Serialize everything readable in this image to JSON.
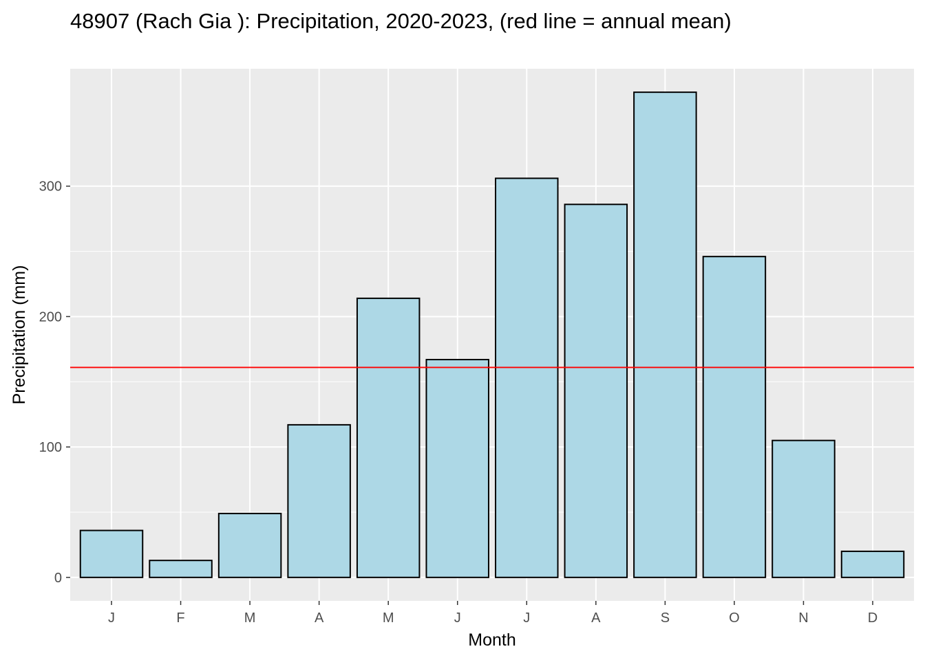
{
  "chart_data": {
    "type": "bar",
    "title": "48907 (Rach Gia ): Precipitation, 2020-2023, (red line = annual mean)",
    "xlabel": "Month",
    "ylabel": "Precipitation (mm)",
    "categories": [
      "J",
      "F",
      "M",
      "A",
      "M",
      "J",
      "J",
      "A",
      "S",
      "O",
      "N",
      "D"
    ],
    "values": [
      36,
      13,
      49,
      117,
      214,
      167,
      306,
      286,
      372,
      246,
      105,
      20
    ],
    "annual_mean": 161,
    "yticks": [
      0,
      100,
      200,
      300
    ],
    "ylim": [
      -18,
      390
    ],
    "grid": true,
    "colors": {
      "panel_background": "#ebebeb",
      "grid": "#ffffff",
      "bar_fill": "#add8e6",
      "bar_stroke": "#000000",
      "mean_line": "#ff0000",
      "tick_text": "#4d4d4d"
    }
  }
}
